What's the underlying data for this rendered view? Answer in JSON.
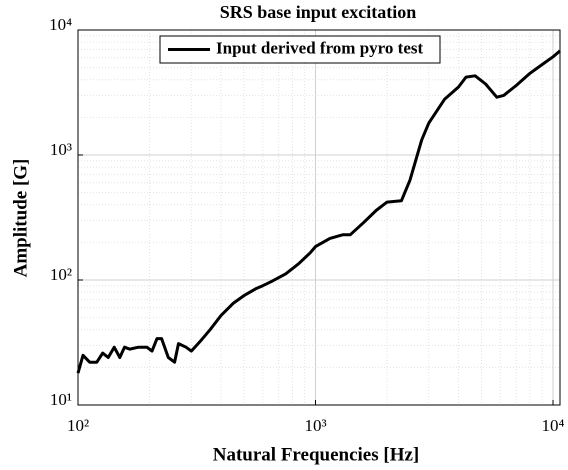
{
  "chart_data": {
    "type": "line",
    "title": "SRS base input excitation",
    "x_label": "Natural Frequencies [Hz]",
    "y_label": "Amplitude [G]",
    "x_scale": "log",
    "y_scale": "log",
    "grid": true,
    "legend": "top",
    "xlim": [
      100,
      10700
    ],
    "ylim": [
      10,
      10000
    ],
    "xticks": [
      {
        "value": 100,
        "label": "10²"
      },
      {
        "value": 1000,
        "label": "10³"
      },
      {
        "value": 10000,
        "label": "10⁴"
      }
    ],
    "yticks": [
      {
        "value": 10,
        "label": "10¹"
      },
      {
        "value": 100,
        "label": "10²"
      },
      {
        "value": 1000,
        "label": "10³"
      },
      {
        "value": 10000,
        "label": "10⁴"
      }
    ],
    "x": [
      100,
      105,
      112,
      120,
      127,
      134,
      142,
      150,
      157,
      165,
      180,
      195,
      205,
      215,
      225,
      240,
      255,
      265,
      285,
      300,
      330,
      360,
      400,
      450,
      500,
      560,
      600,
      650,
      750,
      850,
      950,
      1000,
      1150,
      1300,
      1400,
      1600,
      1800,
      2000,
      2300,
      2500,
      2800,
      3000,
      3500,
      4000,
      4300,
      4700,
      5200,
      5800,
      6200,
      7000,
      8000,
      9000,
      10000,
      10700
    ],
    "series": [
      {
        "name": "Input derived from pyro test",
        "color": "#000000",
        "values": [
          18,
          25,
          22,
          22,
          26,
          24,
          29,
          24,
          29,
          28,
          29,
          29,
          27,
          34,
          34,
          24,
          22,
          31,
          29,
          27,
          33,
          40,
          52,
          65,
          75,
          85,
          90,
          97,
          112,
          135,
          165,
          185,
          215,
          230,
          230,
          290,
          360,
          420,
          430,
          630,
          1320,
          1800,
          2800,
          3500,
          4200,
          4300,
          3700,
          2900,
          3000,
          3600,
          4500,
          5300,
          6100,
          6800
        ]
      }
    ]
  }
}
